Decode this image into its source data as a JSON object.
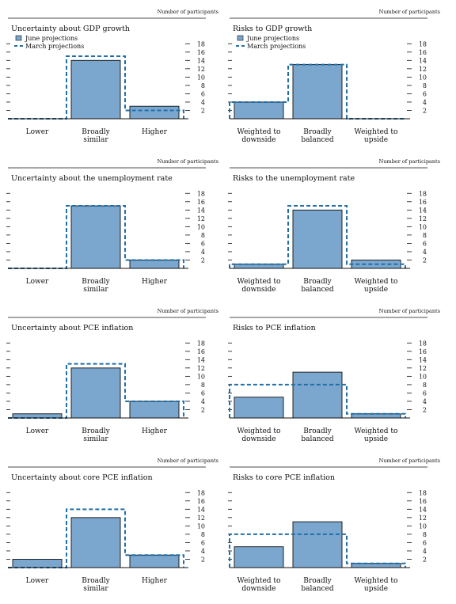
{
  "colors": {
    "bar_fill": "#7ba7cf",
    "bar_edge": "#111111",
    "dash": "#1f6fa8",
    "text": "#111111"
  },
  "legend": {
    "june": "June projections",
    "march": "March projections"
  },
  "chart_data": [
    {
      "type": "bar",
      "title": "Uncertainty about GDP growth",
      "unit_label": "Number of participants",
      "show_legend": true,
      "categories": [
        "Lower",
        "Broadly\nsimilar",
        "Higher"
      ],
      "series": [
        {
          "name": "June projections",
          "values": [
            0,
            14,
            3
          ]
        },
        {
          "name": "March projections",
          "values": [
            0,
            15,
            2
          ]
        }
      ],
      "ylim": [
        0,
        19
      ],
      "yticks": [
        2,
        4,
        6,
        8,
        10,
        12,
        14,
        16,
        18
      ]
    },
    {
      "type": "bar",
      "title": "Risks to GDP growth",
      "unit_label": "Number of participants",
      "show_legend": true,
      "categories": [
        "Weighted to\ndownside",
        "Broadly\nbalanced",
        "Weighted to\nupside"
      ],
      "series": [
        {
          "name": "June projections",
          "values": [
            4,
            13,
            0
          ]
        },
        {
          "name": "March projections",
          "values": [
            4,
            13,
            0
          ]
        }
      ],
      "ylim": [
        0,
        19
      ],
      "yticks": [
        2,
        4,
        6,
        8,
        10,
        12,
        14,
        16,
        18
      ]
    },
    {
      "type": "bar",
      "title": "Uncertainty about the unemployment rate",
      "unit_label": "Number of participants",
      "show_legend": false,
      "categories": [
        "Lower",
        "Broadly\nsimilar",
        "Higher"
      ],
      "series": [
        {
          "name": "June projections",
          "values": [
            0,
            15,
            2
          ]
        },
        {
          "name": "March projections",
          "values": [
            0,
            15,
            2
          ]
        }
      ],
      "ylim": [
        0,
        19
      ],
      "yticks": [
        2,
        4,
        6,
        8,
        10,
        12,
        14,
        16,
        18
      ]
    },
    {
      "type": "bar",
      "title": "Risks to the unemployment rate",
      "unit_label": "Number of participants",
      "show_legend": false,
      "categories": [
        "Weighted to\ndownside",
        "Broadly\nbalanced",
        "Weighted to\nupside"
      ],
      "series": [
        {
          "name": "June projections",
          "values": [
            1,
            14,
            2
          ]
        },
        {
          "name": "March projections",
          "values": [
            1,
            15,
            1
          ]
        }
      ],
      "ylim": [
        0,
        19
      ],
      "yticks": [
        2,
        4,
        6,
        8,
        10,
        12,
        14,
        16,
        18
      ]
    },
    {
      "type": "bar",
      "title": "Uncertainty about PCE inflation",
      "unit_label": "Number of participants",
      "show_legend": false,
      "categories": [
        "Lower",
        "Broadly\nsimilar",
        "Higher"
      ],
      "series": [
        {
          "name": "June projections",
          "values": [
            1,
            12,
            4
          ]
        },
        {
          "name": "March projections",
          "values": [
            0,
            13,
            4
          ]
        }
      ],
      "ylim": [
        0,
        19
      ],
      "yticks": [
        2,
        4,
        6,
        8,
        10,
        12,
        14,
        16,
        18
      ]
    },
    {
      "type": "bar",
      "title": "Risks to PCE inflation",
      "unit_label": "Number of participants",
      "show_legend": false,
      "categories": [
        "Weighted to\ndownside",
        "Broadly\nbalanced",
        "Weighted to\nupside"
      ],
      "series": [
        {
          "name": "June projections",
          "values": [
            5,
            11,
            1
          ]
        },
        {
          "name": "March projections",
          "values": [
            8,
            8,
            1
          ]
        }
      ],
      "ylim": [
        0,
        19
      ],
      "yticks": [
        2,
        4,
        6,
        8,
        10,
        12,
        14,
        16,
        18
      ]
    },
    {
      "type": "bar",
      "title": "Uncertainty about core PCE inflation",
      "unit_label": "Number of participants",
      "show_legend": false,
      "categories": [
        "Lower",
        "Broadly\nsimilar",
        "Higher"
      ],
      "series": [
        {
          "name": "June projections",
          "values": [
            2,
            12,
            3
          ]
        },
        {
          "name": "March projections",
          "values": [
            0,
            14,
            3
          ]
        }
      ],
      "ylim": [
        0,
        19
      ],
      "yticks": [
        2,
        4,
        6,
        8,
        10,
        12,
        14,
        16,
        18
      ]
    },
    {
      "type": "bar",
      "title": "Risks to core PCE inflation",
      "unit_label": "Number of participants",
      "show_legend": false,
      "categories": [
        "Weighted to\ndownside",
        "Broadly\nbalanced",
        "Weighted to\nupside"
      ],
      "series": [
        {
          "name": "June projections",
          "values": [
            5,
            11,
            1
          ]
        },
        {
          "name": "March projections",
          "values": [
            8,
            8,
            1
          ]
        }
      ],
      "ylim": [
        0,
        19
      ],
      "yticks": [
        2,
        4,
        6,
        8,
        10,
        12,
        14,
        16,
        18
      ]
    }
  ]
}
